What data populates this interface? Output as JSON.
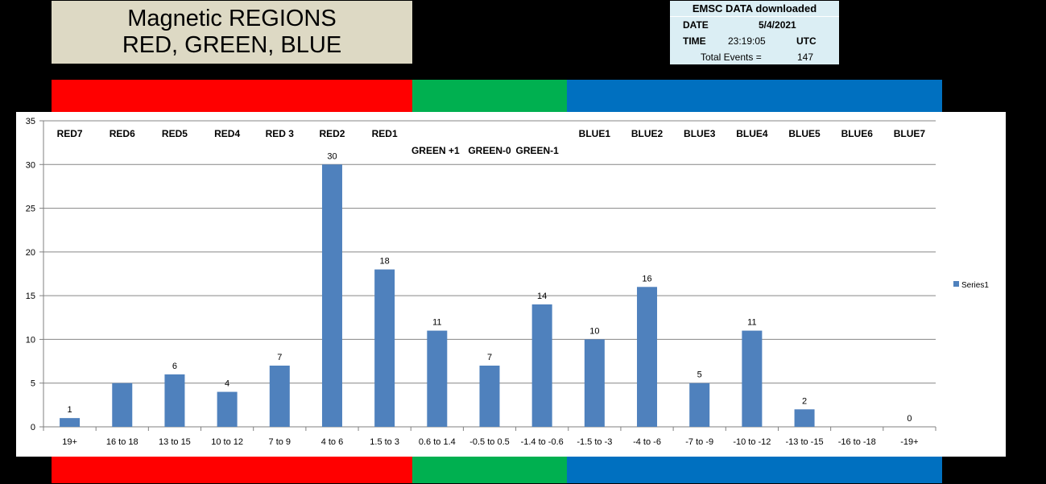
{
  "title": {
    "line1": "Magnetic REGIONS",
    "line2": "RED, GREEN, BLUE"
  },
  "emsc": {
    "header": "EMSC DATA downloaded",
    "date_label": "DATE",
    "date_value": "5/4/2021",
    "time_label": "TIME",
    "time_value": "23:19:05",
    "time_zone": "UTC",
    "events_label": "Total Events  =",
    "events_value": "147"
  },
  "colors": {
    "red": "#ff0000",
    "green": "#00b050",
    "blue": "#0070c0",
    "bar": "#4f81bd"
  },
  "chart_data": {
    "type": "bar",
    "categories": [
      "19+",
      "16 to 18",
      "13 to 15",
      "10 to 12",
      "7 to 9",
      "4 to 6",
      "1.5 to 3",
      "0.6 to 1.4",
      "-0.5 to 0.5",
      "-1.4 to -0.6",
      "-1.5 to -3",
      "-4 to -6",
      "-7 to -9",
      "-10 to -12",
      "-13 to -15",
      "-16 to -18",
      "-19+"
    ],
    "series": [
      {
        "name": "Series1",
        "values": [
          1,
          5,
          6,
          4,
          7,
          30,
          18,
          11,
          7,
          14,
          10,
          16,
          5,
          11,
          2,
          null,
          0
        ]
      }
    ],
    "data_labels": [
      "1",
      "",
      "6",
      "4",
      "7",
      "30",
      "18",
      "11",
      "7",
      "14",
      "10",
      "16",
      "5",
      "11",
      "2",
      "",
      "0"
    ],
    "region_labels": [
      "RED7",
      "RED6",
      "RED5",
      "RED4",
      "RED 3",
      "RED2",
      "RED1",
      "GREEN +1",
      "GREEN-0",
      "GREEN-1",
      "BLUE1",
      "BLUE2",
      "BLUE3",
      "BLUE4",
      "BLUE5",
      "BLUE6",
      "BLUE7"
    ],
    "y_ticks": [
      0,
      5,
      10,
      15,
      20,
      25,
      30,
      35
    ],
    "ylim": [
      0,
      35
    ],
    "grid": true,
    "legend_position": "right"
  }
}
